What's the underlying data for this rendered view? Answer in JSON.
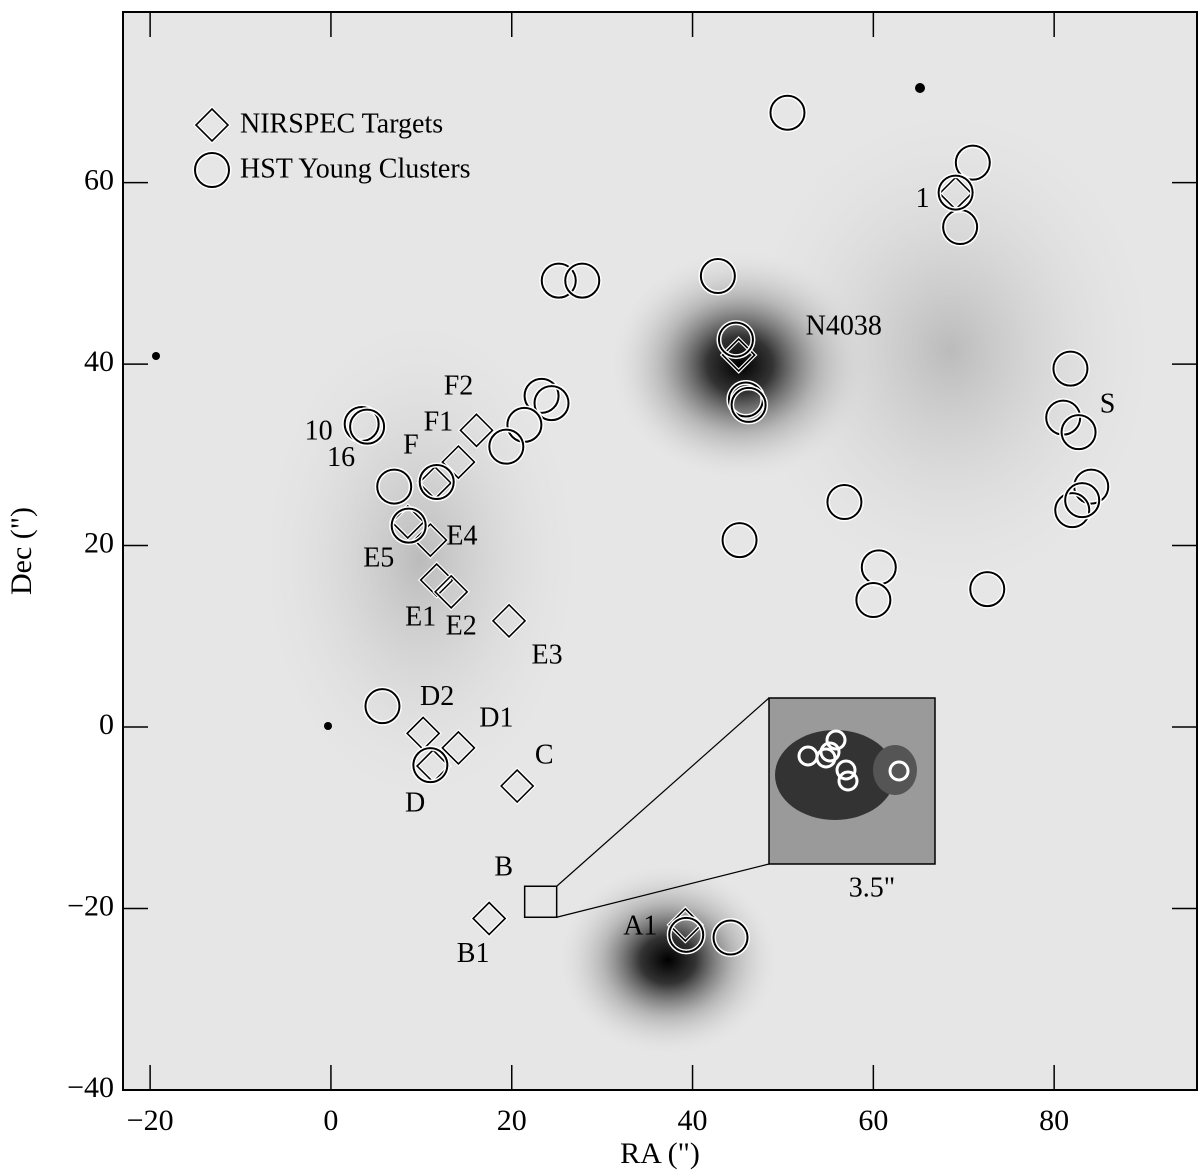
{
  "chart_data": {
    "type": "scatter",
    "xlabel": "RA (\")",
    "ylabel": "Dec (\")",
    "xlim": [
      -23,
      95.8
    ],
    "ylim": [
      -40,
      78.8
    ],
    "xticks": [
      {
        "value": -20,
        "label": "−20"
      },
      0,
      20,
      40,
      60,
      80
    ],
    "yticks": [
      {
        "value": -40,
        "label": "−40"
      },
      {
        "value": -20,
        "label": "−20"
      },
      0,
      20,
      40,
      60
    ],
    "legend": "upper left",
    "series": [
      {
        "name": "NIRSPEC Targets",
        "marker": "diamond",
        "color": "#000000",
        "x": [
          69.1,
          45.1,
          16.1,
          14.1,
          11.5,
          11.0,
          8.5,
          11.7,
          13.3,
          19.7,
          10.2,
          14.1,
          11.3,
          20.6,
          17.5,
          39.2
        ],
        "y": [
          58.8,
          41.0,
          32.7,
          29.2,
          26.9,
          20.6,
          22.6,
          16.2,
          14.9,
          11.7,
          -0.7,
          -2.3,
          -4.3,
          -6.5,
          -21.1,
          -21.8
        ],
        "labels": [
          "1",
          "N4038",
          "F2",
          "F1",
          "F",
          "E4",
          "E5",
          "E1",
          "E2",
          "E3",
          "D2",
          "D1",
          "D",
          "C",
          "B1",
          "A1"
        ]
      },
      {
        "name": "HST Young Clusters",
        "marker": "circle",
        "color": "#000000",
        "x": [
          50.5,
          71.0,
          69.6,
          69.1,
          25.2,
          27.8,
          42.8,
          44.8,
          45.9,
          46.2,
          81.8,
          81.0,
          82.7,
          84.1,
          82.0,
          83.1,
          56.8,
          60.6,
          60.0,
          72.6,
          45.2,
          23.3,
          24.4,
          21.4,
          19.4,
          3.4,
          4.0,
          7.0,
          11.7,
          8.6,
          5.7,
          11.0,
          39.3,
          44.2
        ],
        "y": [
          67.7,
          62.2,
          55.1,
          58.9,
          49.2,
          49.2,
          49.7,
          42.7,
          36.1,
          35.5,
          39.5,
          34.1,
          32.5,
          26.5,
          23.9,
          25.0,
          24.8,
          17.6,
          14.0,
          15.2,
          20.6,
          36.5,
          35.7,
          33.3,
          30.9,
          33.4,
          33.1,
          26.5,
          27.0,
          22.2,
          2.3,
          -4.2,
          -22.9,
          -23.2
        ],
        "labels": [
          null,
          null,
          null,
          null,
          null,
          null,
          null,
          null,
          null,
          null,
          null,
          null,
          "S",
          null,
          null,
          null,
          null,
          null,
          null,
          null,
          null,
          null,
          null,
          null,
          null,
          "10",
          "16",
          null,
          null,
          null,
          null,
          null,
          null,
          null
        ]
      }
    ],
    "zoom": {
      "label": "B",
      "x": 23.2,
      "y": -19.2,
      "inset_label": "3.5\""
    }
  }
}
